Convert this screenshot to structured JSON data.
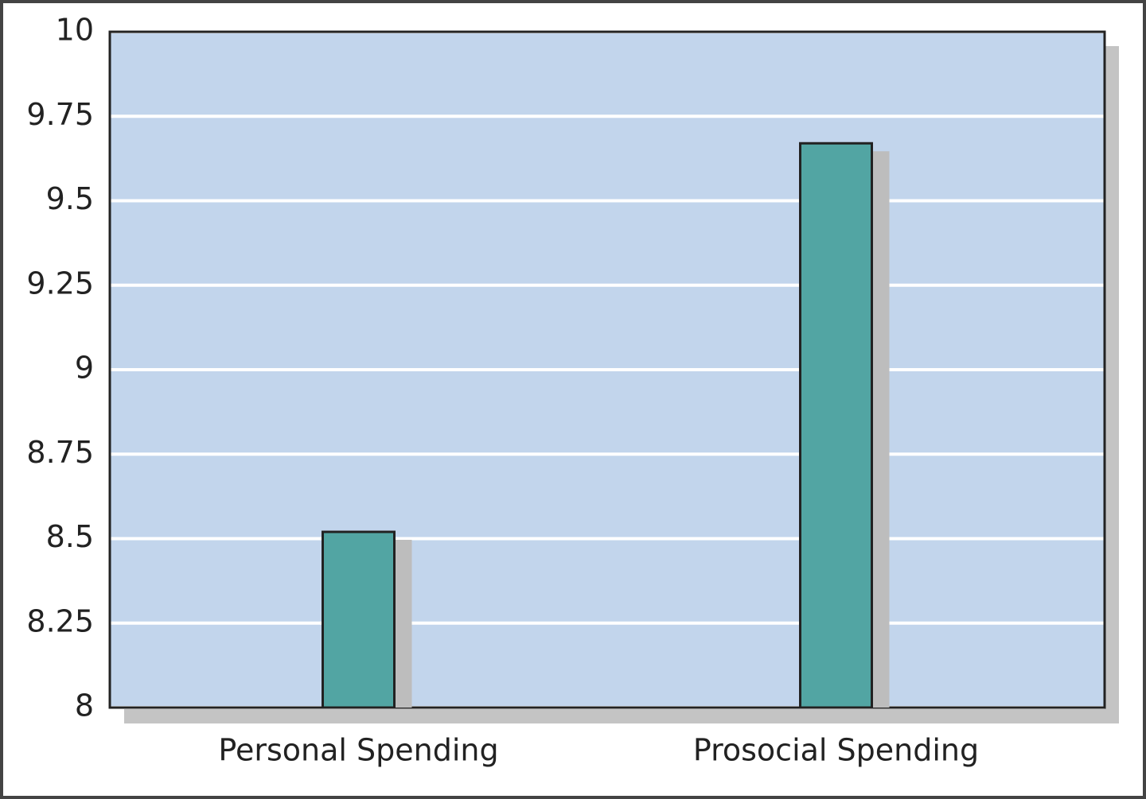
{
  "chart_data": {
    "type": "bar",
    "categories": [
      "Personal Spending",
      "Prosocial Spending"
    ],
    "values": [
      8.52,
      9.67
    ],
    "color": "#52a5a3",
    "ylim": [
      8,
      10
    ],
    "yticks": [
      8,
      8.25,
      8.5,
      8.75,
      9,
      9.25,
      9.5,
      9.75,
      10
    ],
    "grid": true
  }
}
